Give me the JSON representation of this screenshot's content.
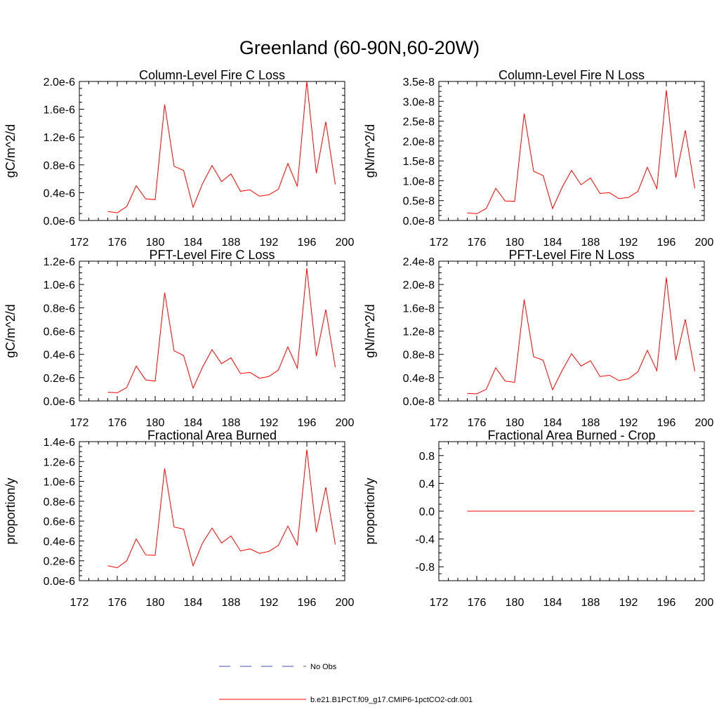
{
  "figure_title": "Greenland (60-90N,60-20W)",
  "legend": [
    {
      "label": "No Obs",
      "color": "#3c4eb4",
      "dash": "dashed"
    },
    {
      "label": "b.e21.B1PCT.f09_g17.CMIP6-1pctCO2-cdr.001",
      "color": "#ff0000",
      "dash": "solid"
    }
  ],
  "chart_data": [
    {
      "type": "line",
      "title": "Column-Level Fire C Loss",
      "xlabel": "",
      "ylabel": "gC/m^2/d",
      "xlim": [
        172,
        200
      ],
      "ylim": [
        0,
        2e-06
      ],
      "x_ticks": [
        "172",
        "176",
        "180",
        "184",
        "188",
        "192",
        "196",
        "200"
      ],
      "y_ticks": [
        "0.0e-6",
        "0.4e-6",
        "0.8e-6",
        "1.2e-6",
        "1.6e-6",
        "2.0e-6"
      ],
      "x": [
        175,
        176,
        177,
        178,
        179,
        180,
        181,
        182,
        183,
        184,
        185,
        186,
        187,
        188,
        189,
        190,
        191,
        192,
        193,
        194,
        195,
        196,
        197,
        198,
        199
      ],
      "series": [
        {
          "name": "b.e21.B1PCT.f09_g17.CMIP6-1pctCO2-cdr.001",
          "values": [
            1.3e-07,
            1.1e-07,
            2e-07,
            5e-07,
            3.1e-07,
            3e-07,
            1.67e-06,
            7.8e-07,
            7.2e-07,
            1.9e-07,
            5.3e-07,
            7.9e-07,
            5.6e-07,
            6.7e-07,
            4.2e-07,
            4.4e-07,
            3.5e-07,
            3.7e-07,
            4.5e-07,
            8.2e-07,
            4.9e-07,
            2e-06,
            6.8e-07,
            1.42e-06,
            5.2e-07
          ]
        }
      ]
    },
    {
      "type": "line",
      "title": "Column-Level Fire N Loss",
      "xlabel": "",
      "ylabel": "gN/m^2/d",
      "xlim": [
        172,
        200
      ],
      "ylim": [
        0,
        3.5e-08
      ],
      "x_ticks": [
        "172",
        "176",
        "180",
        "184",
        "188",
        "192",
        "196",
        "200"
      ],
      "y_ticks": [
        "0.0e-8",
        "0.5e-8",
        "1.0e-8",
        "1.5e-8",
        "2.0e-8",
        "2.5e-8",
        "3.0e-8",
        "3.5e-8"
      ],
      "x": [
        175,
        176,
        177,
        178,
        179,
        180,
        181,
        182,
        183,
        184,
        185,
        186,
        187,
        188,
        189,
        190,
        191,
        192,
        193,
        194,
        195,
        196,
        197,
        198,
        199
      ],
      "series": [
        {
          "name": "b.e21.B1PCT.f09_g17.CMIP6-1pctCO2-cdr.001",
          "values": [
            1.9e-09,
            1.7e-09,
            3e-09,
            8.1e-09,
            4.9e-09,
            4.8e-09,
            2.69e-08,
            1.24e-08,
            1.13e-08,
            3e-09,
            8.3e-09,
            1.26e-08,
            9e-09,
            1.07e-08,
            6.8e-09,
            7e-09,
            5.5e-09,
            5.8e-09,
            7.3e-09,
            1.34e-08,
            8e-09,
            3.28e-08,
            1.08e-08,
            2.27e-08,
            8.1e-09
          ]
        }
      ]
    },
    {
      "type": "line",
      "title": "PFT-Level Fire C Loss",
      "xlabel": "",
      "ylabel": "gC/m^2/d",
      "xlim": [
        172,
        200
      ],
      "ylim": [
        0,
        1.2e-06
      ],
      "x_ticks": [
        "172",
        "176",
        "180",
        "184",
        "188",
        "192",
        "196",
        "200"
      ],
      "y_ticks": [
        "0.0e-6",
        "0.2e-6",
        "0.4e-6",
        "0.6e-6",
        "0.8e-6",
        "1.0e-6",
        "1.2e-6"
      ],
      "x": [
        175,
        176,
        177,
        178,
        179,
        180,
        181,
        182,
        183,
        184,
        185,
        186,
        187,
        188,
        189,
        190,
        191,
        192,
        193,
        194,
        195,
        196,
        197,
        198,
        199
      ],
      "series": [
        {
          "name": "b.e21.B1PCT.f09_g17.CMIP6-1pctCO2-cdr.001",
          "values": [
            7.5e-08,
            7e-08,
            1.15e-07,
            3e-07,
            1.8e-07,
            1.7e-07,
            9.3e-07,
            4.3e-07,
            3.9e-07,
            1.1e-07,
            2.9e-07,
            4.4e-07,
            3.2e-07,
            3.7e-07,
            2.35e-07,
            2.45e-07,
            1.95e-07,
            2.1e-07,
            2.65e-07,
            4.65e-07,
            2.8e-07,
            1.14e-06,
            3.85e-07,
            7.85e-07,
            2.9e-07
          ]
        }
      ]
    },
    {
      "type": "line",
      "title": "PFT-Level Fire N Loss",
      "xlabel": "",
      "ylabel": "gN/m^2/d",
      "xlim": [
        172,
        200
      ],
      "ylim": [
        0,
        2.4e-08
      ],
      "x_ticks": [
        "172",
        "176",
        "180",
        "184",
        "188",
        "192",
        "196",
        "200"
      ],
      "y_ticks": [
        "0.0e-8",
        "0.4e-8",
        "0.8e-8",
        "1.2e-8",
        "1.6e-8",
        "2.0e-8",
        "2.4e-8"
      ],
      "x": [
        175,
        176,
        177,
        178,
        179,
        180,
        181,
        182,
        183,
        184,
        185,
        186,
        187,
        188,
        189,
        190,
        191,
        192,
        193,
        194,
        195,
        196,
        197,
        198,
        199
      ],
      "series": [
        {
          "name": "b.e21.B1PCT.f09_g17.CMIP6-1pctCO2-cdr.001",
          "values": [
            1.3e-09,
            1.2e-09,
            2e-09,
            5.7e-09,
            3.4e-09,
            3.2e-09,
            1.74e-08,
            7.6e-09,
            7e-09,
            1.9e-09,
            5.2e-09,
            8.1e-09,
            6e-09,
            6.9e-09,
            4.2e-09,
            4.4e-09,
            3.5e-09,
            3.8e-09,
            5e-09,
            8.7e-09,
            5.2e-09,
            2.12e-08,
            7e-09,
            1.4e-08,
            5.1e-09
          ]
        }
      ]
    },
    {
      "type": "line",
      "title": "Fractional Area Burned",
      "xlabel": "",
      "ylabel": "proportion/y",
      "xlim": [
        172,
        200
      ],
      "ylim": [
        0,
        1.4e-06
      ],
      "x_ticks": [
        "172",
        "176",
        "180",
        "184",
        "188",
        "192",
        "196",
        "200"
      ],
      "y_ticks": [
        "0.0e-6",
        "0.2e-6",
        "0.4e-6",
        "0.6e-6",
        "0.8e-6",
        "1.0e-6",
        "1.2e-6",
        "1.4e-6"
      ],
      "x": [
        175,
        176,
        177,
        178,
        179,
        180,
        181,
        182,
        183,
        184,
        185,
        186,
        187,
        188,
        189,
        190,
        191,
        192,
        193,
        194,
        195,
        196,
        197,
        198,
        199
      ],
      "series": [
        {
          "name": "b.e21.B1PCT.f09_g17.CMIP6-1pctCO2-cdr.001",
          "values": [
            1.5e-07,
            1.3e-07,
            2e-07,
            4.2e-07,
            2.6e-07,
            2.55e-07,
            1.13e-06,
            5.4e-07,
            5.2e-07,
            1.5e-07,
            3.8e-07,
            5.3e-07,
            3.8e-07,
            4.5e-07,
            3e-07,
            3.2e-07,
            2.75e-07,
            2.95e-07,
            3.55e-07,
            5.5e-07,
            3.6e-07,
            1.32e-06,
            4.9e-07,
            9.4e-07,
            3.65e-07
          ]
        }
      ]
    },
    {
      "type": "line",
      "title": "Fractional Area Burned - Crop",
      "xlabel": "",
      "ylabel": "proportion/y",
      "xlim": [
        172,
        200
      ],
      "ylim": [
        -1,
        1
      ],
      "x_ticks": [
        "172",
        "176",
        "180",
        "184",
        "188",
        "192",
        "196",
        "200"
      ],
      "y_ticks": [
        "-0.8",
        "-0.4",
        "0.0",
        "0.4",
        "0.8"
      ],
      "y_tick_values": [
        -0.8,
        -0.4,
        0.0,
        0.4,
        0.8
      ],
      "x": [
        175,
        176,
        177,
        178,
        179,
        180,
        181,
        182,
        183,
        184,
        185,
        186,
        187,
        188,
        189,
        190,
        191,
        192,
        193,
        194,
        195,
        196,
        197,
        198,
        199
      ],
      "series": [
        {
          "name": "b.e21.B1PCT.f09_g17.CMIP6-1pctCO2-cdr.001",
          "values": [
            0,
            0,
            0,
            0,
            0,
            0,
            0,
            0,
            0,
            0,
            0,
            0,
            0,
            0,
            0,
            0,
            0,
            0,
            0,
            0,
            0,
            0,
            0,
            0,
            0
          ]
        }
      ]
    }
  ]
}
